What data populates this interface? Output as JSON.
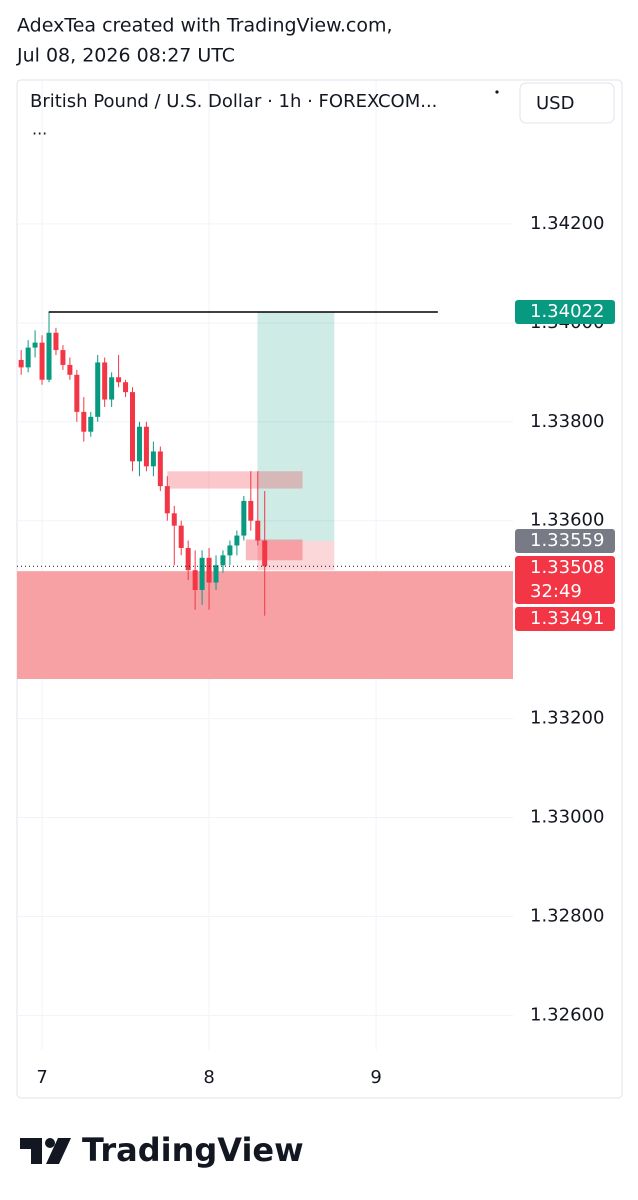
{
  "header": {
    "author_line": "AdexTea created with TradingView.com,",
    "timestamp": "Jul 08, 2026 08:27 UTC"
  },
  "footer": {
    "brand": "TradingView"
  },
  "chart_data": {
    "type": "candlestick",
    "title": "British Pound / U.S. Dollar · 1h · FOREXCOM...",
    "menu": "...",
    "currency": "USD",
    "up_color": "#089981",
    "down_color": "#f23645",
    "grid": true,
    "xlim": [
      6.85,
      9.82
    ],
    "xticks": [
      7,
      8,
      9
    ],
    "ylim": [
      1.3253,
      1.344
    ],
    "yticks": [
      {
        "value": 1.342,
        "label": "1.34200"
      },
      {
        "value": 1.34,
        "label": "1.34000"
      },
      {
        "value": 1.338,
        "label": "1.33800"
      },
      {
        "value": 1.336,
        "label": "1.33600"
      },
      {
        "value": 1.334,
        "label": "1.33400"
      },
      {
        "value": 1.332,
        "label": "1.33200"
      },
      {
        "value": 1.33,
        "label": "1.33000"
      },
      {
        "value": 1.328,
        "label": "1.32800"
      },
      {
        "value": 1.326,
        "label": "1.32600"
      }
    ],
    "x": [
      6.875,
      6.9167,
      6.9583,
      7,
      7.0417,
      7.0833,
      7.125,
      7.1667,
      7.2083,
      7.25,
      7.2917,
      7.3333,
      7.375,
      7.4167,
      7.4583,
      7.5,
      7.5417,
      7.5833,
      7.625,
      7.6667,
      7.7083,
      7.75,
      7.7917,
      7.8333,
      7.875,
      7.9167,
      7.9583,
      8,
      8.0417,
      8.0833,
      8.125,
      8.1667,
      8.2083,
      8.25,
      8.2917,
      8.3333
    ],
    "open": [
      1.33925,
      1.3391,
      1.3395,
      1.3396,
      1.33885,
      1.3398,
      1.33945,
      1.33915,
      1.33895,
      1.3382,
      1.3378,
      1.3381,
      1.3392,
      1.33845,
      1.3389,
      1.3388,
      1.3386,
      1.3372,
      1.3379,
      1.3371,
      1.3374,
      1.3367,
      1.33615,
      1.3359,
      1.33545,
      1.335,
      1.3346,
      1.33525,
      1.33475,
      1.3351,
      1.3353,
      1.3355,
      1.3357,
      1.3364,
      1.336,
      1.3356
    ],
    "high": [
      1.33945,
      1.33965,
      1.33985,
      1.33975,
      1.34022,
      1.3399,
      1.33955,
      1.3393,
      1.33905,
      1.3385,
      1.3382,
      1.33935,
      1.3393,
      1.339,
      1.33935,
      1.33885,
      1.3387,
      1.338,
      1.338,
      1.3376,
      1.3375,
      1.3369,
      1.3363,
      1.336,
      1.3356,
      1.3354,
      1.3354,
      1.33545,
      1.3353,
      1.3354,
      1.3356,
      1.3358,
      1.3365,
      1.337,
      1.337,
      1.3366
    ],
    "low": [
      1.33895,
      1.339,
      1.3393,
      1.33875,
      1.3388,
      1.33935,
      1.33905,
      1.33885,
      1.338,
      1.3376,
      1.3377,
      1.338,
      1.3383,
      1.3383,
      1.3387,
      1.3385,
      1.337,
      1.3369,
      1.337,
      1.3369,
      1.3366,
      1.336,
      1.3351,
      1.3353,
      1.3348,
      1.3342,
      1.3343,
      1.3342,
      1.3346,
      1.33495,
      1.3351,
      1.3353,
      1.3356,
      1.3358,
      1.3355,
      1.33408
    ],
    "close": [
      1.3391,
      1.3395,
      1.3396,
      1.33885,
      1.3398,
      1.33945,
      1.33915,
      1.33895,
      1.3382,
      1.3378,
      1.3381,
      1.3392,
      1.33845,
      1.3389,
      1.3388,
      1.3386,
      1.3372,
      1.3379,
      1.3371,
      1.3374,
      1.3367,
      1.33615,
      1.3359,
      1.33545,
      1.335,
      1.3346,
      1.33525,
      1.33475,
      1.3351,
      1.3353,
      1.3355,
      1.3357,
      1.3364,
      1.336,
      1.3356,
      1.33508
    ],
    "zones": [
      {
        "x": [
          6.85,
          9.82
        ],
        "y": [
          1.3328,
          1.33498
        ],
        "color": "#f7a1a4"
      },
      {
        "x": [
          8.29,
          8.75
        ],
        "y": [
          1.33559,
          1.34022
        ],
        "color": "rgba(8,153,129,0.2)"
      },
      {
        "x": [
          8.29,
          8.75
        ],
        "y": [
          1.335,
          1.33559
        ],
        "color": "rgba(242,54,69,0.2)"
      },
      {
        "x": [
          7.75,
          8.56
        ],
        "y": [
          1.33665,
          1.337
        ],
        "color": "rgba(242,54,69,0.28)"
      },
      {
        "x": [
          8.22,
          8.56
        ],
        "y": [
          1.3352,
          1.33562
        ],
        "color": "rgba(242,54,69,0.35)"
      }
    ],
    "levels": [
      {
        "x": [
          7.04,
          9.37
        ],
        "y": 1.34022,
        "color": "#000000"
      }
    ],
    "price_labels": [
      {
        "value": 1.34022,
        "color": "#089981"
      },
      {
        "value": 1.33559,
        "color": "#787b86"
      },
      {
        "value": 1.33508,
        "color": "#f23645",
        "countdown": "32:49"
      },
      {
        "value": 1.33491,
        "color": "#f23645"
      }
    ]
  }
}
